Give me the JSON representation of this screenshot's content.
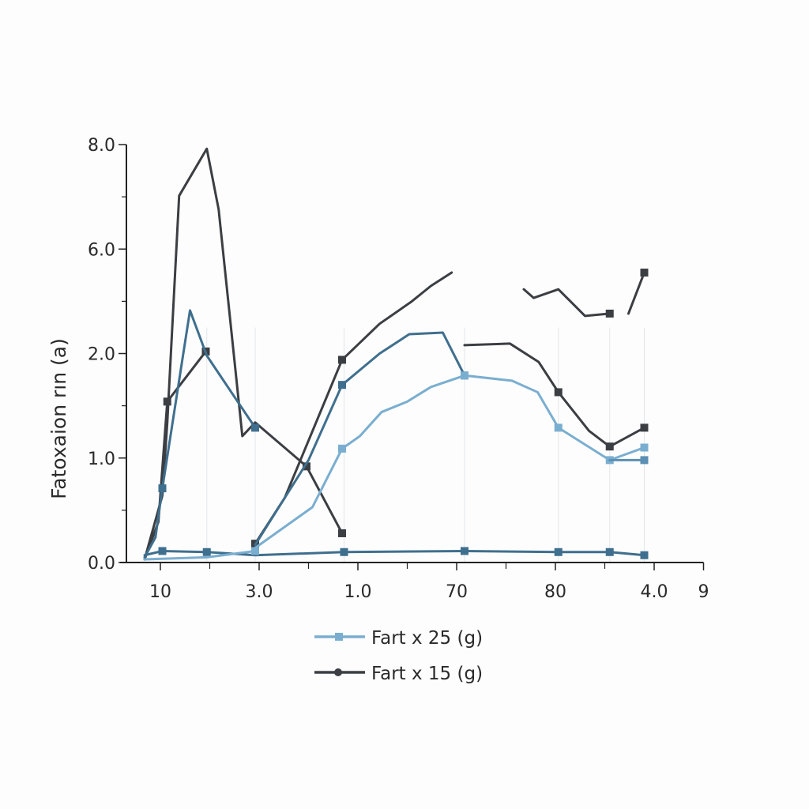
{
  "chart_data": {
    "type": "line",
    "title": "",
    "xlabel": "",
    "ylabel": "Fatoxaion rın (a)",
    "grid": "sparse vertical lines",
    "legend_placement": "bottom-center",
    "x_ticks": [
      {
        "label": "10",
        "pos": 0
      },
      {
        "label": "3.0",
        "pos": 1
      },
      {
        "label": "1.0",
        "pos": 2
      },
      {
        "label": "70",
        "pos": 3
      },
      {
        "label": "80",
        "pos": 4
      },
      {
        "label": "4.0",
        "pos": 5
      },
      {
        "label": "9",
        "pos": 5.5
      }
    ],
    "xlim": [
      -0.38,
      5.5
    ],
    "y_ticks": [
      {
        "label": "0.0",
        "value": 0
      },
      {
        "label": "1.0",
        "value": 1
      },
      {
        "label": "2.0",
        "value": 2
      },
      {
        "label": "6.0",
        "value": 6
      },
      {
        "label": "8.0",
        "value": 8
      }
    ],
    "ylim": [
      0,
      8
    ],
    "gridlines_x": [
      0.47,
      0.96,
      1.86,
      3.08,
      4.03,
      4.55,
      4.9
    ],
    "colors": {
      "light": "#7aaed0",
      "mid": "#3f6f8e",
      "dark": "#3b3e42"
    },
    "legend": [
      {
        "label": "Fart x 25 (g)",
        "color": "#7aaed0",
        "marker": "square"
      },
      {
        "label": "Fart x 15 (g)",
        "color": "#3b3e42",
        "marker": "circle"
      }
    ],
    "series": [
      {
        "color": "#3b3e42",
        "points": [
          [
            -0.16,
            0.03
          ],
          [
            0.02,
            0.64
          ],
          [
            0.07,
            1.34
          ],
          [
            0.19,
            7.02
          ],
          [
            0.47,
            7.92
          ],
          [
            0.59,
            6.76
          ],
          [
            0.83,
            1.21
          ],
          [
            0.96,
            1.34
          ],
          [
            1.48,
            0.92
          ],
          [
            1.84,
            0.28
          ]
        ],
        "markers": [
          8,
          9
        ]
      },
      {
        "color": "#3b3e42",
        "points": [
          [
            -0.16,
            0.03
          ],
          [
            -0.02,
            0.39
          ],
          [
            0.07,
            1.54
          ],
          [
            0.46,
            2.08
          ]
        ],
        "markers": [
          2,
          3
        ]
      },
      {
        "color": "#3f6f8e",
        "points": [
          [
            -0.16,
            0.05
          ],
          [
            -0.05,
            0.24
          ],
          [
            0.02,
            0.71
          ],
          [
            0.3,
            3.65
          ],
          [
            0.47,
            1.98
          ],
          [
            0.96,
            1.29
          ]
        ],
        "markers": [
          2,
          5
        ]
      },
      {
        "color": "#3b3e42",
        "points": [
          [
            0.96,
            0.18
          ],
          [
            1.26,
            0.62
          ],
          [
            1.84,
            1.94
          ],
          [
            2.22,
            3.14
          ],
          [
            2.54,
            3.98
          ],
          [
            2.74,
            4.59
          ],
          [
            2.95,
            5.1
          ]
        ],
        "markers": [
          0,
          2
        ]
      },
      {
        "color": "#3f6f8e",
        "points": [
          [
            0.96,
            0.17
          ],
          [
            1.5,
            0.98
          ],
          [
            1.84,
            1.7
          ],
          [
            2.22,
            2.0
          ],
          [
            2.52,
            2.74
          ],
          [
            2.86,
            2.8
          ],
          [
            3.08,
            1.79
          ]
        ],
        "markers": [
          2,
          6
        ]
      },
      {
        "color": "#7aaed0",
        "points": [
          [
            0.96,
            0.14
          ],
          [
            1.54,
            0.53
          ],
          [
            1.84,
            1.09
          ],
          [
            2.02,
            1.21
          ],
          [
            2.24,
            1.44
          ],
          [
            2.5,
            1.54
          ],
          [
            2.74,
            1.68
          ],
          [
            3.08,
            1.79
          ],
          [
            3.56,
            1.74
          ],
          [
            3.82,
            1.63
          ],
          [
            4.03,
            1.29
          ],
          [
            4.55,
            0.98
          ],
          [
            4.9,
            1.1
          ]
        ],
        "markers": [
          2,
          7,
          10,
          11,
          12
        ]
      },
      {
        "color": "#5b8fb3",
        "points": [
          [
            4.55,
            0.98
          ],
          [
            4.9,
            0.98
          ]
        ],
        "markers": [
          1
        ]
      },
      {
        "color": "#3b3e42",
        "points": [
          [
            3.08,
            2.32
          ],
          [
            3.54,
            2.38
          ],
          [
            3.83,
            1.92
          ],
          [
            4.03,
            1.63
          ],
          [
            4.34,
            1.26
          ],
          [
            4.55,
            1.11
          ],
          [
            4.9,
            1.29
          ]
        ],
        "markers": [
          3,
          5,
          6
        ]
      },
      {
        "color": "#3b3e42",
        "points": [
          [
            3.68,
            4.46
          ],
          [
            3.78,
            4.13
          ],
          [
            4.03,
            4.46
          ],
          [
            4.3,
            3.44
          ],
          [
            4.55,
            3.53
          ]
        ],
        "markers": [
          4
        ]
      },
      {
        "color": "#3b3e42",
        "points": [
          [
            4.74,
            3.53
          ],
          [
            4.9,
            5.1
          ]
        ],
        "markers": [
          1
        ]
      },
      {
        "color": "#3f6f8e",
        "points": [
          [
            -0.16,
            0.07
          ],
          [
            0.02,
            0.11
          ],
          [
            0.47,
            0.1
          ],
          [
            0.96,
            0.07
          ],
          [
            1.86,
            0.1
          ],
          [
            3.08,
            0.11
          ],
          [
            4.03,
            0.1
          ],
          [
            4.55,
            0.1
          ],
          [
            4.9,
            0.07
          ]
        ],
        "markers": [
          1,
          2,
          4,
          5,
          6,
          7,
          8
        ]
      },
      {
        "color": "#7aaed0",
        "points": [
          [
            -0.16,
            0.03
          ],
          [
            0.47,
            0.05
          ],
          [
            0.96,
            0.11
          ]
        ],
        "markers": [
          2
        ]
      }
    ]
  }
}
